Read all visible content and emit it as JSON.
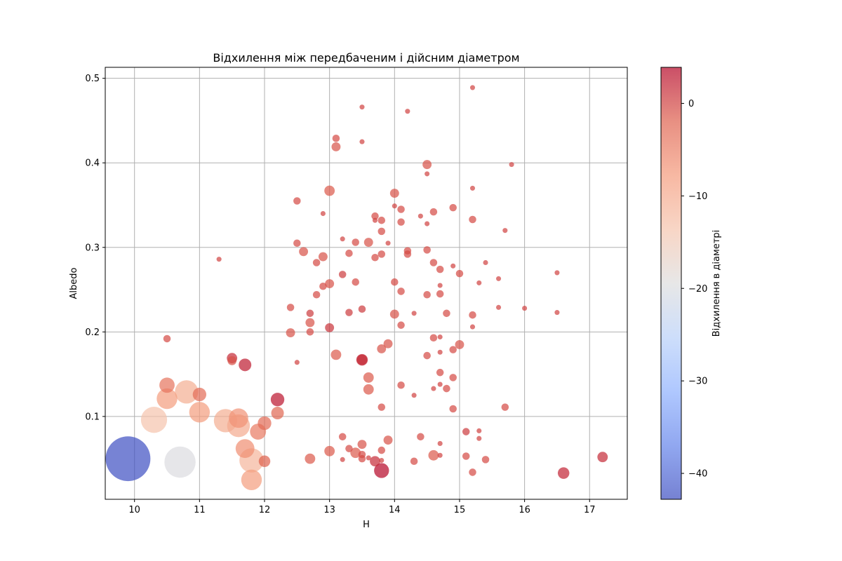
{
  "chart_data": {
    "type": "scatter",
    "title": "Відхилення між передбаченим і дійсним діаметром",
    "xlabel": "H",
    "ylabel": "Albedo",
    "xlim": [
      9.55,
      17.58
    ],
    "ylim": [
      0.002,
      0.513
    ],
    "xticks": [
      "10",
      "11",
      "12",
      "13",
      "14",
      "15",
      "16",
      "17"
    ],
    "yticks": [
      "0.1",
      "0.2",
      "0.3",
      "0.4",
      "0.5"
    ],
    "grid": true,
    "colorbar": {
      "label": "Відхилення в діаметрі",
      "range": [
        -42.8,
        3.9
      ],
      "ticks": [
        "0",
        "−10",
        "−20",
        "−30",
        "−40"
      ],
      "colormap": "coolwarm"
    },
    "points": [
      {
        "x": 9.9,
        "y": 0.05,
        "dev": -42.5
      },
      {
        "x": 10.7,
        "y": 0.046,
        "dev": -19.8
      },
      {
        "x": 10.3,
        "y": 0.096,
        "dev": -13.5
      },
      {
        "x": 10.8,
        "y": 0.129,
        "dev": -10.5
      },
      {
        "x": 10.5,
        "y": 0.121,
        "dev": -8.0
      },
      {
        "x": 10.5,
        "y": 0.137,
        "dev": -4.0
      },
      {
        "x": 10.5,
        "y": 0.192,
        "dev": -0.5
      },
      {
        "x": 11.0,
        "y": 0.105,
        "dev": -8.0
      },
      {
        "x": 11.0,
        "y": 0.126,
        "dev": -3.0
      },
      {
        "x": 11.4,
        "y": 0.095,
        "dev": -10.5
      },
      {
        "x": 11.6,
        "y": 0.089,
        "dev": -10.0
      },
      {
        "x": 11.6,
        "y": 0.098,
        "dev": -7.0
      },
      {
        "x": 11.8,
        "y": 0.048,
        "dev": -11.5
      },
      {
        "x": 11.7,
        "y": 0.062,
        "dev": -6.5
      },
      {
        "x": 11.8,
        "y": 0.025,
        "dev": -8.0
      },
      {
        "x": 11.9,
        "y": 0.082,
        "dev": -4.5
      },
      {
        "x": 12.0,
        "y": 0.092,
        "dev": -3.0
      },
      {
        "x": 12.0,
        "y": 0.047,
        "dev": -2.0
      },
      {
        "x": 11.5,
        "y": 0.166,
        "dev": -1.0
      },
      {
        "x": 11.5,
        "y": 0.169,
        "dev": 1.5
      },
      {
        "x": 11.7,
        "y": 0.161,
        "dev": 2.5
      },
      {
        "x": 12.2,
        "y": 0.12,
        "dev": 3.0
      },
      {
        "x": 12.2,
        "y": 0.104,
        "dev": -2.5
      },
      {
        "x": 11.3,
        "y": 0.286,
        "dev": 0.0
      },
      {
        "x": 12.4,
        "y": 0.229,
        "dev": -0.5
      },
      {
        "x": 12.4,
        "y": 0.199,
        "dev": -1.0
      },
      {
        "x": 12.5,
        "y": 0.355,
        "dev": -0.5
      },
      {
        "x": 12.5,
        "y": 0.305,
        "dev": -0.5
      },
      {
        "x": 12.5,
        "y": 0.164,
        "dev": 0.0
      },
      {
        "x": 12.6,
        "y": 0.295,
        "dev": -1.0
      },
      {
        "x": 12.7,
        "y": 0.222,
        "dev": 0.5
      },
      {
        "x": 12.7,
        "y": 0.211,
        "dev": -1.0
      },
      {
        "x": 12.7,
        "y": 0.2,
        "dev": -0.5
      },
      {
        "x": 12.7,
        "y": 0.05,
        "dev": -1.5
      },
      {
        "x": 12.8,
        "y": 0.282,
        "dev": -0.5
      },
      {
        "x": 12.8,
        "y": 0.244,
        "dev": -0.5
      },
      {
        "x": 12.9,
        "y": 0.34,
        "dev": 0.0
      },
      {
        "x": 12.9,
        "y": 0.289,
        "dev": -1.0
      },
      {
        "x": 12.9,
        "y": 0.254,
        "dev": -0.5
      },
      {
        "x": 13.0,
        "y": 0.367,
        "dev": -1.5
      },
      {
        "x": 13.0,
        "y": 0.257,
        "dev": -1.0
      },
      {
        "x": 13.0,
        "y": 0.205,
        "dev": 1.0
      },
      {
        "x": 13.0,
        "y": 0.059,
        "dev": -1.5
      },
      {
        "x": 13.1,
        "y": 0.429,
        "dev": -0.5
      },
      {
        "x": 13.1,
        "y": 0.419,
        "dev": -1.0
      },
      {
        "x": 13.1,
        "y": 0.173,
        "dev": -1.5
      },
      {
        "x": 13.2,
        "y": 0.31,
        "dev": 0.0
      },
      {
        "x": 13.2,
        "y": 0.268,
        "dev": 0.5
      },
      {
        "x": 13.2,
        "y": 0.076,
        "dev": -0.5
      },
      {
        "x": 13.2,
        "y": 0.049,
        "dev": 0.0
      },
      {
        "x": 13.3,
        "y": 0.293,
        "dev": -0.5
      },
      {
        "x": 13.3,
        "y": 0.223,
        "dev": 0.5
      },
      {
        "x": 13.3,
        "y": 0.062,
        "dev": -0.5
      },
      {
        "x": 13.4,
        "y": 0.306,
        "dev": -0.5
      },
      {
        "x": 13.4,
        "y": 0.259,
        "dev": -0.5
      },
      {
        "x": 13.4,
        "y": 0.057,
        "dev": -1.5
      },
      {
        "x": 13.5,
        "y": 0.466,
        "dev": 0.0
      },
      {
        "x": 13.5,
        "y": 0.425,
        "dev": 0.0
      },
      {
        "x": 13.5,
        "y": 0.227,
        "dev": 0.5
      },
      {
        "x": 13.5,
        "y": 0.167,
        "dev": 2.0
      },
      {
        "x": 13.5,
        "y": 0.167,
        "dev": 1.5
      },
      {
        "x": 13.5,
        "y": 0.067,
        "dev": -1.0
      },
      {
        "x": 13.5,
        "y": 0.055,
        "dev": -0.5
      },
      {
        "x": 13.5,
        "y": 0.05,
        "dev": -0.5
      },
      {
        "x": 13.6,
        "y": 0.306,
        "dev": -1.0
      },
      {
        "x": 13.6,
        "y": 0.146,
        "dev": -1.5
      },
      {
        "x": 13.6,
        "y": 0.132,
        "dev": -1.5
      },
      {
        "x": 13.6,
        "y": 0.051,
        "dev": 0.0
      },
      {
        "x": 13.7,
        "y": 0.337,
        "dev": -0.5
      },
      {
        "x": 13.7,
        "y": 0.332,
        "dev": 0.0
      },
      {
        "x": 13.7,
        "y": 0.288,
        "dev": -0.5
      },
      {
        "x": 13.7,
        "y": 0.047,
        "dev": 1.5
      },
      {
        "x": 13.8,
        "y": 0.332,
        "dev": -0.5
      },
      {
        "x": 13.8,
        "y": 0.319,
        "dev": -0.5
      },
      {
        "x": 13.8,
        "y": 0.292,
        "dev": -0.5
      },
      {
        "x": 13.8,
        "y": 0.18,
        "dev": -1.0
      },
      {
        "x": 13.8,
        "y": 0.111,
        "dev": -0.5
      },
      {
        "x": 13.8,
        "y": 0.06,
        "dev": -0.5
      },
      {
        "x": 13.8,
        "y": 0.048,
        "dev": 0.0
      },
      {
        "x": 13.8,
        "y": 0.036,
        "dev": 3.8
      },
      {
        "x": 13.9,
        "y": 0.305,
        "dev": 0.0
      },
      {
        "x": 13.9,
        "y": 0.186,
        "dev": -1.0
      },
      {
        "x": 13.9,
        "y": 0.072,
        "dev": -1.0
      },
      {
        "x": 14.0,
        "y": 0.364,
        "dev": -1.0
      },
      {
        "x": 14.0,
        "y": 0.349,
        "dev": 0.0
      },
      {
        "x": 14.0,
        "y": 0.259,
        "dev": -0.5
      },
      {
        "x": 14.0,
        "y": 0.221,
        "dev": -1.0
      },
      {
        "x": 14.1,
        "y": 0.345,
        "dev": -0.5
      },
      {
        "x": 14.1,
        "y": 0.33,
        "dev": -0.5
      },
      {
        "x": 14.1,
        "y": 0.248,
        "dev": -0.5
      },
      {
        "x": 14.1,
        "y": 0.208,
        "dev": -0.5
      },
      {
        "x": 14.1,
        "y": 0.137,
        "dev": -0.5
      },
      {
        "x": 14.2,
        "y": 0.461,
        "dev": 0.0
      },
      {
        "x": 14.2,
        "y": 0.296,
        "dev": -0.5
      },
      {
        "x": 14.2,
        "y": 0.292,
        "dev": -0.5
      },
      {
        "x": 14.3,
        "y": 0.222,
        "dev": 0.0
      },
      {
        "x": 14.3,
        "y": 0.125,
        "dev": 0.0
      },
      {
        "x": 14.3,
        "y": 0.047,
        "dev": -0.5
      },
      {
        "x": 14.4,
        "y": 0.337,
        "dev": 0.0
      },
      {
        "x": 14.4,
        "y": 0.076,
        "dev": -0.5
      },
      {
        "x": 14.5,
        "y": 0.398,
        "dev": -1.0
      },
      {
        "x": 14.5,
        "y": 0.387,
        "dev": 0.0
      },
      {
        "x": 14.5,
        "y": 0.328,
        "dev": 0.0
      },
      {
        "x": 14.5,
        "y": 0.297,
        "dev": -0.5
      },
      {
        "x": 14.5,
        "y": 0.244,
        "dev": -0.5
      },
      {
        "x": 14.5,
        "y": 0.172,
        "dev": -0.5
      },
      {
        "x": 14.6,
        "y": 0.342,
        "dev": -0.5
      },
      {
        "x": 14.6,
        "y": 0.282,
        "dev": -0.5
      },
      {
        "x": 14.6,
        "y": 0.193,
        "dev": -0.5
      },
      {
        "x": 14.6,
        "y": 0.133,
        "dev": 0.0
      },
      {
        "x": 14.6,
        "y": 0.054,
        "dev": -1.5
      },
      {
        "x": 14.7,
        "y": 0.274,
        "dev": -0.5
      },
      {
        "x": 14.7,
        "y": 0.255,
        "dev": 0.0
      },
      {
        "x": 14.7,
        "y": 0.245,
        "dev": -0.5
      },
      {
        "x": 14.7,
        "y": 0.194,
        "dev": 0.0
      },
      {
        "x": 14.7,
        "y": 0.176,
        "dev": 0.0
      },
      {
        "x": 14.7,
        "y": 0.152,
        "dev": -0.5
      },
      {
        "x": 14.7,
        "y": 0.138,
        "dev": 0.0
      },
      {
        "x": 14.7,
        "y": 0.068,
        "dev": 0.0
      },
      {
        "x": 14.7,
        "y": 0.054,
        "dev": 0.0
      },
      {
        "x": 14.8,
        "y": 0.222,
        "dev": -0.5
      },
      {
        "x": 14.8,
        "y": 0.133,
        "dev": -0.5
      },
      {
        "x": 14.9,
        "y": 0.347,
        "dev": -0.5
      },
      {
        "x": 14.9,
        "y": 0.278,
        "dev": 0.0
      },
      {
        "x": 14.9,
        "y": 0.179,
        "dev": -0.5
      },
      {
        "x": 14.9,
        "y": 0.146,
        "dev": -0.5
      },
      {
        "x": 14.9,
        "y": 0.109,
        "dev": -0.5
      },
      {
        "x": 15.0,
        "y": 0.269,
        "dev": -0.5
      },
      {
        "x": 15.0,
        "y": 0.185,
        "dev": -1.0
      },
      {
        "x": 15.1,
        "y": 0.082,
        "dev": 0.5
      },
      {
        "x": 15.1,
        "y": 0.053,
        "dev": -0.5
      },
      {
        "x": 15.2,
        "y": 0.489,
        "dev": 0.0
      },
      {
        "x": 15.2,
        "y": 0.37,
        "dev": 0.0
      },
      {
        "x": 15.2,
        "y": 0.333,
        "dev": -0.5
      },
      {
        "x": 15.2,
        "y": 0.22,
        "dev": -0.5
      },
      {
        "x": 15.2,
        "y": 0.206,
        "dev": 0.0
      },
      {
        "x": 15.2,
        "y": 0.034,
        "dev": -0.5
      },
      {
        "x": 15.3,
        "y": 0.258,
        "dev": 0.0
      },
      {
        "x": 15.3,
        "y": 0.083,
        "dev": 0.0
      },
      {
        "x": 15.3,
        "y": 0.074,
        "dev": 0.0
      },
      {
        "x": 15.4,
        "y": 0.282,
        "dev": 0.0
      },
      {
        "x": 15.4,
        "y": 0.049,
        "dev": -0.5
      },
      {
        "x": 15.6,
        "y": 0.263,
        "dev": 0.0
      },
      {
        "x": 15.6,
        "y": 0.229,
        "dev": 0.0
      },
      {
        "x": 15.7,
        "y": 0.32,
        "dev": 0.0
      },
      {
        "x": 15.7,
        "y": 0.111,
        "dev": -0.5
      },
      {
        "x": 15.8,
        "y": 0.398,
        "dev": 0.0
      },
      {
        "x": 16.0,
        "y": 0.228,
        "dev": 0.0
      },
      {
        "x": 16.5,
        "y": 0.27,
        "dev": 0.0
      },
      {
        "x": 16.5,
        "y": 0.223,
        "dev": 0.0
      },
      {
        "x": 16.6,
        "y": 0.033,
        "dev": 2.0
      },
      {
        "x": 17.2,
        "y": 0.052,
        "dev": 1.5
      }
    ]
  }
}
